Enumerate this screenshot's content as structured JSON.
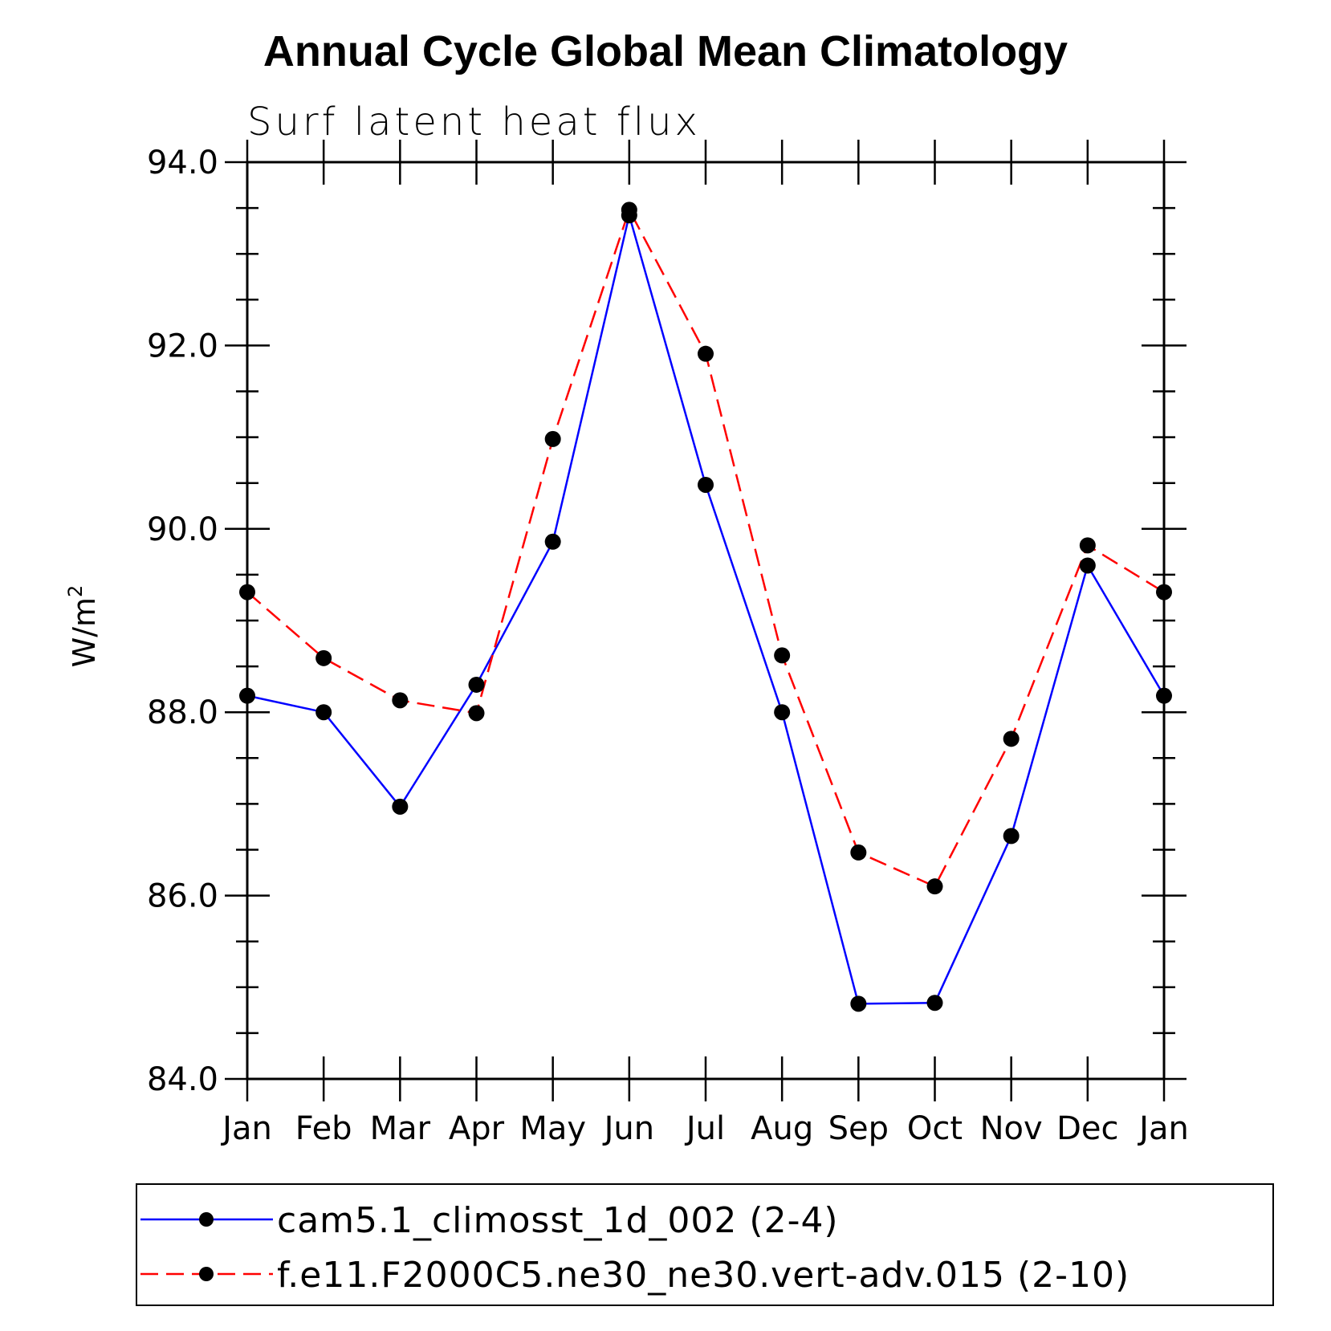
{
  "chart_data": {
    "type": "line",
    "title": "Annual Cycle Global Mean Climatology",
    "subtitle": "Surf latent heat flux",
    "ylabel": "W/m",
    "ylabel_sup": "2",
    "xlabel": "",
    "categories": [
      "Jan",
      "Feb",
      "Mar",
      "Apr",
      "May",
      "Jun",
      "Jul",
      "Aug",
      "Sep",
      "Oct",
      "Nov",
      "Dec",
      "Jan"
    ],
    "ylim": [
      84.0,
      94.0
    ],
    "yticks": [
      "84.0",
      "86.0",
      "88.0",
      "90.0",
      "92.0",
      "94.0"
    ],
    "grid": false,
    "legend_position": "bottom",
    "series": [
      {
        "name": "cam5.1_climosst_1d_002 (2-4)",
        "color": "#0000ff",
        "dash": "solid",
        "values": [
          88.18,
          88.0,
          86.97,
          88.3,
          89.86,
          93.42,
          90.48,
          88.0,
          84.82,
          84.83,
          86.65,
          89.6,
          88.18
        ]
      },
      {
        "name": "f.e11.F2000C5.ne30_ne30.vert-adv.015 (2-10)",
        "color": "#ff0000",
        "dash": "dashed",
        "values": [
          89.31,
          88.59,
          88.13,
          87.99,
          90.98,
          93.48,
          91.91,
          88.62,
          86.47,
          86.1,
          87.71,
          89.82,
          89.31
        ]
      }
    ]
  }
}
